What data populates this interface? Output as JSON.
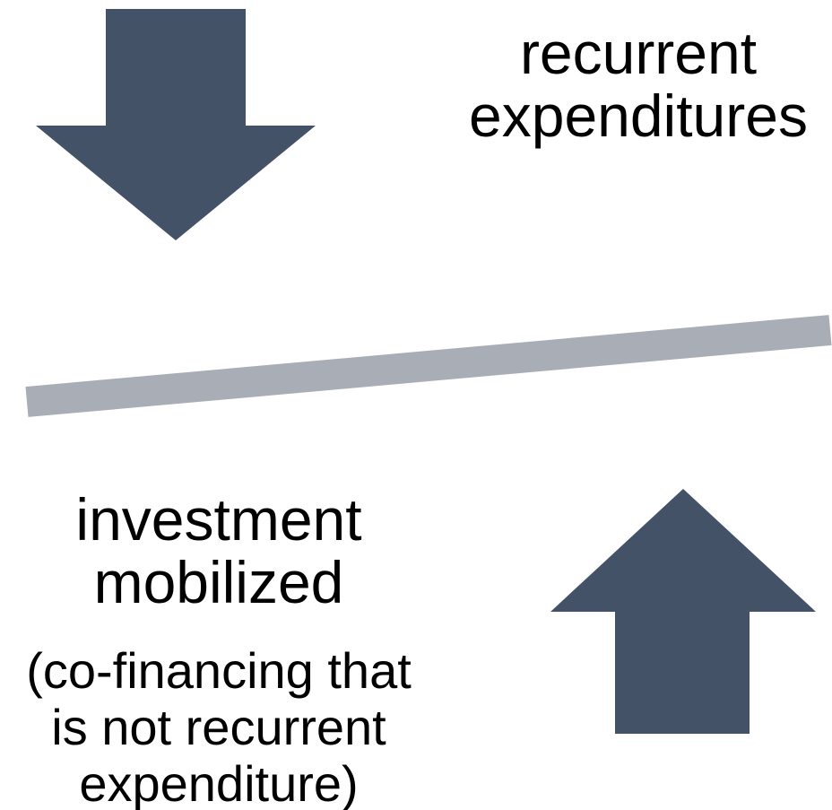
{
  "top_label": {
    "lines": [
      "recurrent",
      "expenditures"
    ]
  },
  "bottom_label": {
    "lines": [
      "investment",
      "mobilized"
    ]
  },
  "note": {
    "lines": [
      "(co-financing that",
      "is not recurrent",
      "expenditure)"
    ]
  }
}
